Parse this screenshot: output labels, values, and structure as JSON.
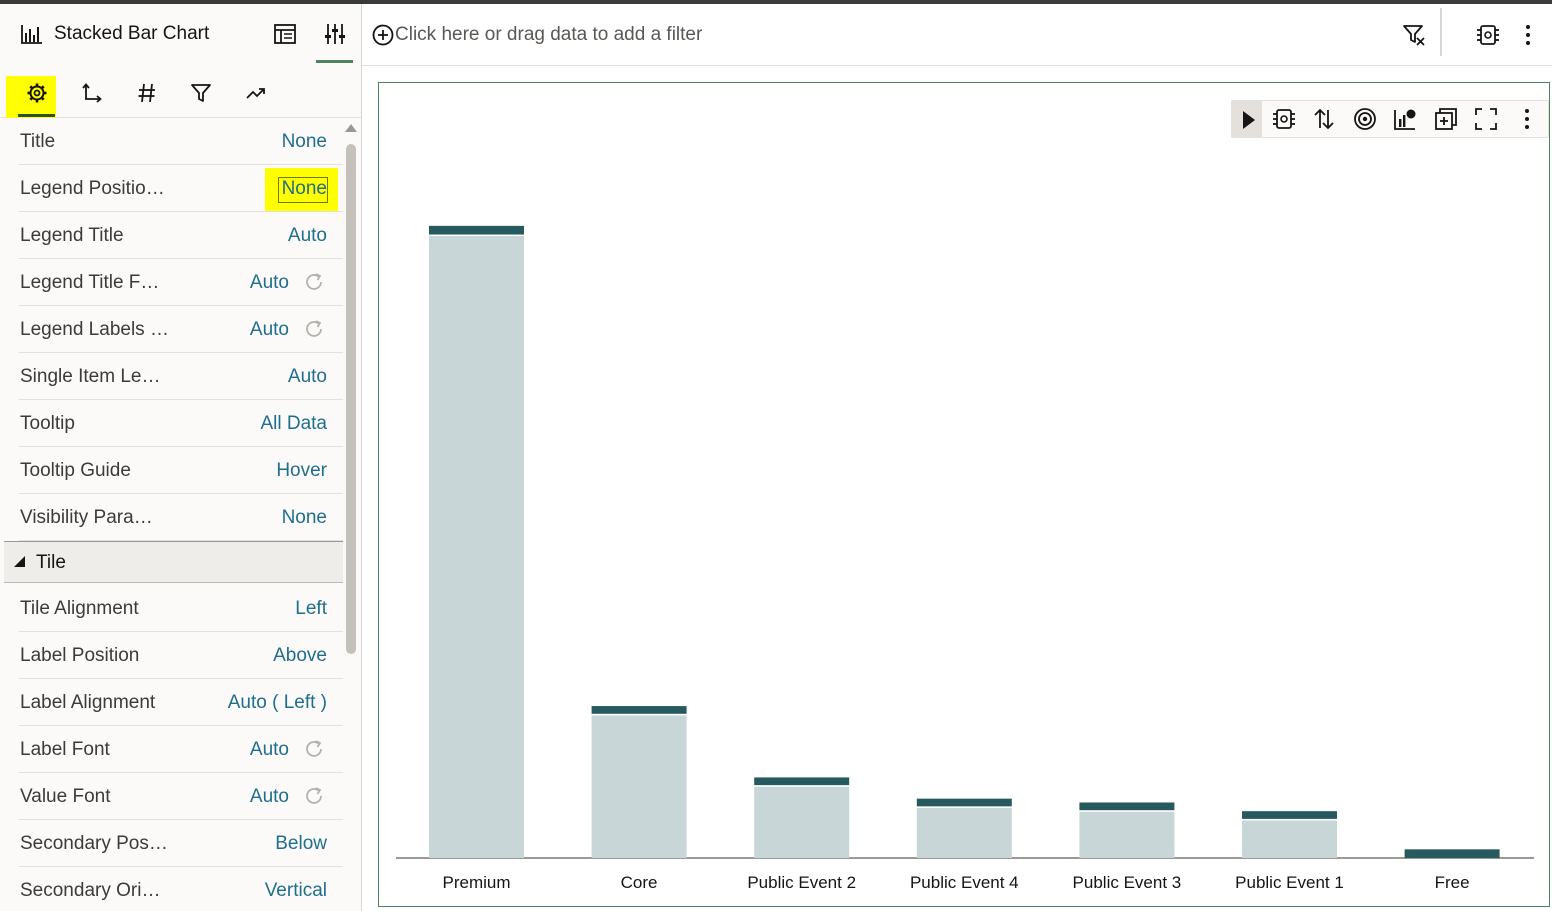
{
  "panel": {
    "title": "Stacked Bar Chart",
    "chart_type_icon": "bar-chart-icon",
    "header_icons": [
      "layout-panel-icon",
      "properties-sliders-icon"
    ],
    "tabs": [
      {
        "name": "general-settings-icon",
        "active": true
      },
      {
        "name": "axis-icon",
        "active": false
      },
      {
        "name": "number-format-icon",
        "active": false
      },
      {
        "name": "filter-icon",
        "active": false
      },
      {
        "name": "analytics-trend-icon",
        "active": false
      }
    ],
    "properties": [
      {
        "label": "Title",
        "value": "None",
        "reset": false
      },
      {
        "label": "Legend Positio…",
        "value": "None",
        "reset": false,
        "highlighted": true
      },
      {
        "label": "Legend Title",
        "value": "Auto",
        "reset": false
      },
      {
        "label": "Legend Title F…",
        "value": "Auto",
        "reset": true
      },
      {
        "label": "Legend Labels …",
        "value": "Auto",
        "reset": true
      },
      {
        "label": "Single Item Le…",
        "value": "Auto",
        "reset": false
      },
      {
        "label": "Tooltip",
        "value": "All Data",
        "reset": false
      },
      {
        "label": "Tooltip Guide",
        "value": "Hover",
        "reset": false
      },
      {
        "label": "Visibility Para…",
        "value": "None",
        "reset": false
      }
    ],
    "tile_section": {
      "title": "Tile",
      "properties": [
        {
          "label": "Tile Alignment",
          "value": "Left",
          "reset": false
        },
        {
          "label": "Label Position",
          "value": "Above",
          "reset": false
        },
        {
          "label": "Label Alignment",
          "value": "Auto ( Left )",
          "reset": false
        },
        {
          "label": "Label Font",
          "value": "Auto",
          "reset": true
        },
        {
          "label": "Value Font",
          "value": "Auto",
          "reset": true
        },
        {
          "label": "Secondary Pos…",
          "value": "Below",
          "reset": false
        },
        {
          "label": "Secondary Ori…",
          "value": "Vertical",
          "reset": false
        }
      ]
    }
  },
  "filter_bar": {
    "placeholder": "Click here or drag data to add a filter",
    "icons": [
      "filter-options-icon",
      "visualization-grammar-icon",
      "more-options-icon"
    ]
  },
  "viz_toolbar": {
    "icons": [
      "play-icon",
      "grammar-icon",
      "sort-icon",
      "target-icon",
      "chart-type-icon",
      "add-tile-icon",
      "maximize-icon",
      "more-options-icon"
    ]
  },
  "colors": {
    "accent_green": "#4c825c",
    "bar_light": "#c8d6d7",
    "bar_dark": "#265a5e",
    "link_blue": "#1f6e8c",
    "highlight_yellow": "#ffff00"
  },
  "chart_data": {
    "type": "bar",
    "stacked": true,
    "categories": [
      "Premium",
      "Core",
      "Public Event 2",
      "Public Event 4",
      "Public Event 3",
      "Public Event 1",
      "Free"
    ],
    "series": [
      {
        "color": "#c8d6d7",
        "values": [
          645,
          148,
          74,
          52,
          48,
          39,
          0
        ]
      },
      {
        "color": "#265a5e",
        "values": [
          9,
          8,
          8,
          8,
          8,
          8,
          9
        ]
      }
    ],
    "ylim": [
      0,
      700
    ],
    "grid": false,
    "legend": "none"
  }
}
